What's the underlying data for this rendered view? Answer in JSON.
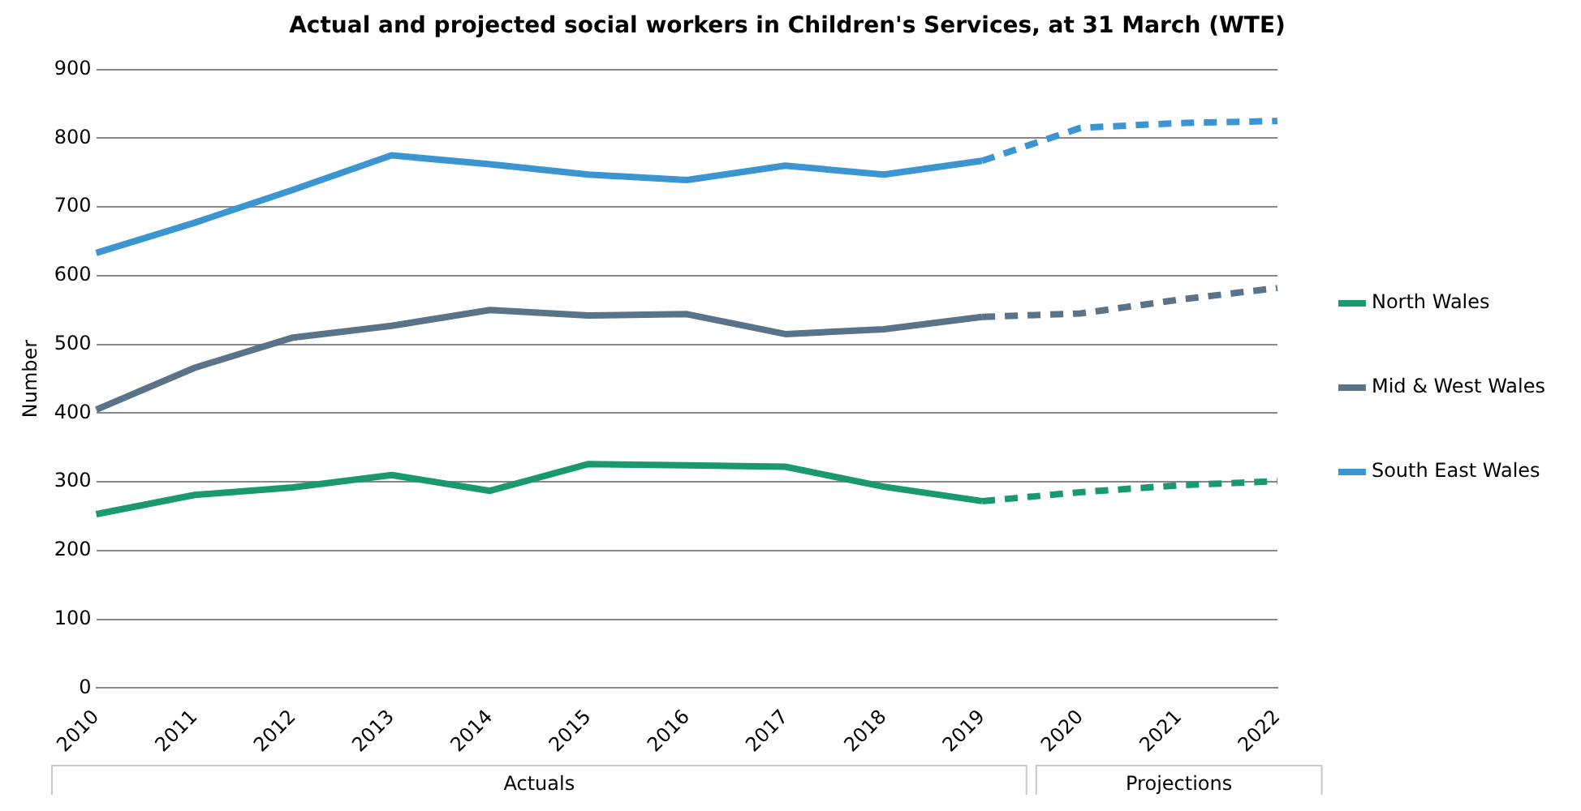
{
  "chart_data": {
    "type": "line",
    "title": "Actual and projected social workers in Children's Services, at 31 March (WTE)",
    "ylabel": "Number",
    "categories": [
      "2010",
      "2011",
      "2012",
      "2013",
      "2014",
      "2015",
      "2016",
      "2017",
      "2018",
      "2019",
      "2020",
      "2021",
      "2022"
    ],
    "series": [
      {
        "name": "North Wales",
        "color": "#1a9a6c",
        "line_style": "solid",
        "values": [
          253,
          281,
          292,
          310,
          287,
          326,
          324,
          322,
          293,
          272,
          null,
          null,
          null
        ]
      },
      {
        "name": "Mid & West Wales",
        "color": "#5a7388",
        "line_style": "solid",
        "values": [
          405,
          466,
          510,
          527,
          550,
          542,
          544,
          515,
          522,
          540,
          null,
          null,
          null
        ]
      },
      {
        "name": "South East Wales",
        "color": "#3a95d0",
        "line_style": "solid",
        "values": [
          633,
          677,
          725,
          775,
          762,
          747,
          739,
          760,
          747,
          767,
          null,
          null,
          null
        ]
      },
      {
        "color": "#1a9a6c",
        "line_style": "dashed",
        "values": [
          null,
          null,
          null,
          null,
          null,
          null,
          null,
          null,
          null,
          272,
          285,
          295,
          301
        ]
      },
      {
        "color": "#5a7388",
        "line_style": "dashed",
        "values": [
          null,
          null,
          null,
          null,
          null,
          null,
          null,
          null,
          null,
          540,
          545,
          565,
          582
        ]
      },
      {
        "color": "#3a95d0",
        "line_style": "dashed",
        "values": [
          null,
          null,
          null,
          null,
          null,
          null,
          null,
          null,
          null,
          767,
          815,
          822,
          825
        ]
      }
    ],
    "ylim": [
      0,
      900
    ],
    "yticks": [
      0,
      100,
      200,
      300,
      400,
      500,
      600,
      700,
      800,
      900
    ],
    "grid": "y",
    "legend": "right",
    "marker": "none",
    "annotations": [
      "Actuals",
      "Projections"
    ]
  }
}
